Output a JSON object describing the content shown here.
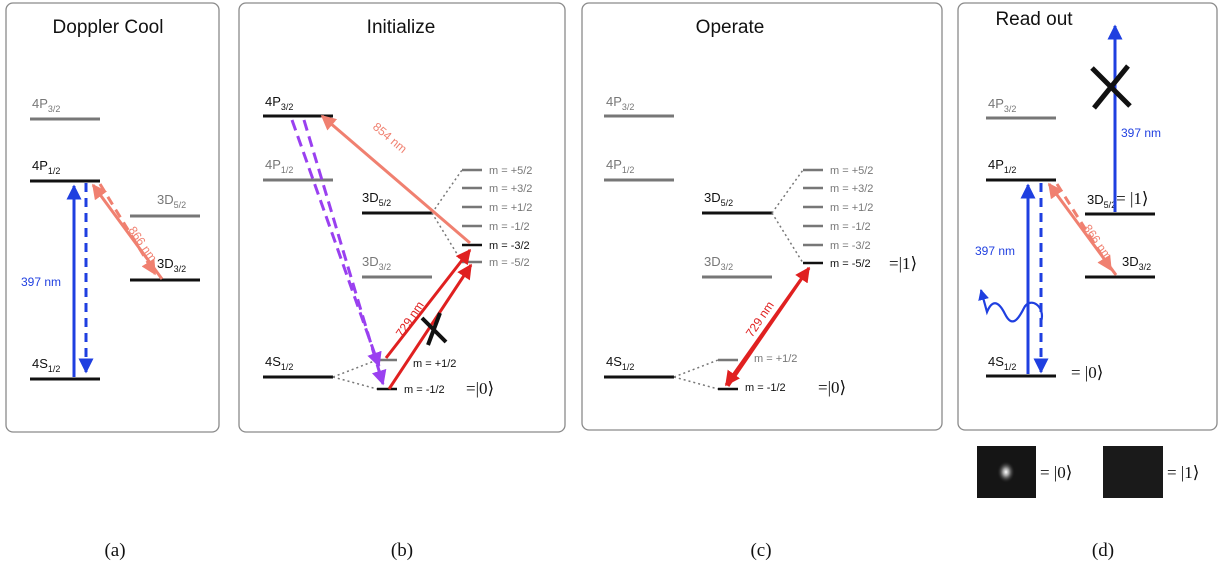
{
  "panels": {
    "a": {
      "title": "Doppler Cool",
      "caption": "(a)"
    },
    "b": {
      "title": "Initialize",
      "caption": "(b)"
    },
    "c": {
      "title": "Operate",
      "caption": "(c)"
    },
    "d": {
      "title": "Read out",
      "caption": "(d)"
    }
  },
  "levels": {
    "P32": {
      "base": "4P",
      "sub": "3/2"
    },
    "P12": {
      "base": "4P",
      "sub": "1/2"
    },
    "D52": {
      "base": "3D",
      "sub": "5/2"
    },
    "D32": {
      "base": "3D",
      "sub": "3/2"
    },
    "S12": {
      "base": "4S",
      "sub": "1/2"
    }
  },
  "wavelengths": {
    "w397": "397 nm",
    "w866": "866 nm",
    "w854": "854 nm",
    "w729": "729 nm"
  },
  "sublevels": {
    "d_m": [
      "m = +5/2",
      "m = +3/2",
      "m = +1/2",
      "m = -1/2",
      "m = -3/2",
      "m = -5/2"
    ],
    "s_m": [
      "m = +1/2",
      "m = -1/2"
    ]
  },
  "kets": {
    "zero": "=|0⟩",
    "one": "=|1⟩",
    "d_one": "3D",
    "d_one_sub": "5/2",
    "d_one_ket": "= |1⟩"
  },
  "legend": {
    "bright": "= |0⟩",
    "dark": "= |1⟩"
  },
  "colors": {
    "blue": "#1f3fe0",
    "salmon": "#f08070",
    "red": "#e02020",
    "purple": "#9a40f0",
    "gray": "#777777",
    "black": "#111111",
    "frame": "#8a8a8a"
  }
}
